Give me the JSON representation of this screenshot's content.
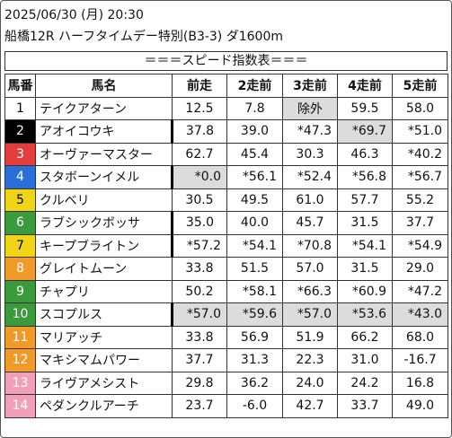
{
  "header": {
    "line1": "2025/06/30 (月) 20:30",
    "line2": "船橋12R ハーフタイムデー特別(B3-3) ダ1600m"
  },
  "banner": "＝＝＝スピード指数表＝＝＝",
  "columns": [
    "馬番",
    "馬名",
    "前走",
    "2走前",
    "3走前",
    "4走前",
    "5走前"
  ],
  "rows": [
    {
      "num": "1",
      "name": "テイクアターン",
      "vals": [
        "12.5",
        "7.8",
        "除外",
        "59.5",
        "58.0"
      ]
    },
    {
      "num": "2",
      "name": "アオイコウキ",
      "vals": [
        "37.8",
        "39.0",
        "*47.3",
        "*69.7",
        "*51.0"
      ]
    },
    {
      "num": "3",
      "name": "オーヴァーマスター",
      "vals": [
        "62.7",
        "45.4",
        "30.3",
        "46.3",
        "*40.2"
      ]
    },
    {
      "num": "4",
      "name": "スタボーンイメル",
      "vals": [
        "*0.0",
        "*56.1",
        "*52.4",
        "*56.8",
        "*56.7"
      ]
    },
    {
      "num": "5",
      "name": "クルベリ",
      "vals": [
        "30.5",
        "49.5",
        "61.0",
        "57.7",
        "55.2"
      ]
    },
    {
      "num": "6",
      "name": "ラブシックボッサ",
      "vals": [
        "35.0",
        "40.0",
        "45.7",
        "31.5",
        "37.7"
      ]
    },
    {
      "num": "7",
      "name": "キープブライトン",
      "vals": [
        "*57.2",
        "*54.1",
        "*70.8",
        "*54.1",
        "*54.9"
      ]
    },
    {
      "num": "8",
      "name": "グレイトムーン",
      "vals": [
        "33.8",
        "51.5",
        "57.0",
        "31.5",
        "29.0"
      ]
    },
    {
      "num": "9",
      "name": "チャプリ",
      "vals": [
        "50.2",
        "*58.1",
        "*66.3",
        "*60.9",
        "*47.2"
      ]
    },
    {
      "num": "10",
      "name": "スコプルス",
      "vals": [
        "*57.0",
        "*59.6",
        "*57.0",
        "*53.6",
        "*43.0"
      ]
    },
    {
      "num": "11",
      "name": "マリアッチ",
      "vals": [
        "33.8",
        "56.9",
        "51.9",
        "66.2",
        "68.0"
      ]
    },
    {
      "num": "12",
      "name": "マキシマムパワー",
      "vals": [
        "37.7",
        "31.3",
        "22.3",
        "31.0",
        "-16.7"
      ]
    },
    {
      "num": "13",
      "name": "ライヴアメシスト",
      "vals": [
        "29.8",
        "36.2",
        "24.0",
        "24.2",
        "16.8"
      ]
    },
    {
      "num": "14",
      "name": "ペダンクルアーチ",
      "vals": [
        "23.7",
        "-6.0",
        "42.7",
        "33.7",
        "49.0"
      ]
    }
  ]
}
